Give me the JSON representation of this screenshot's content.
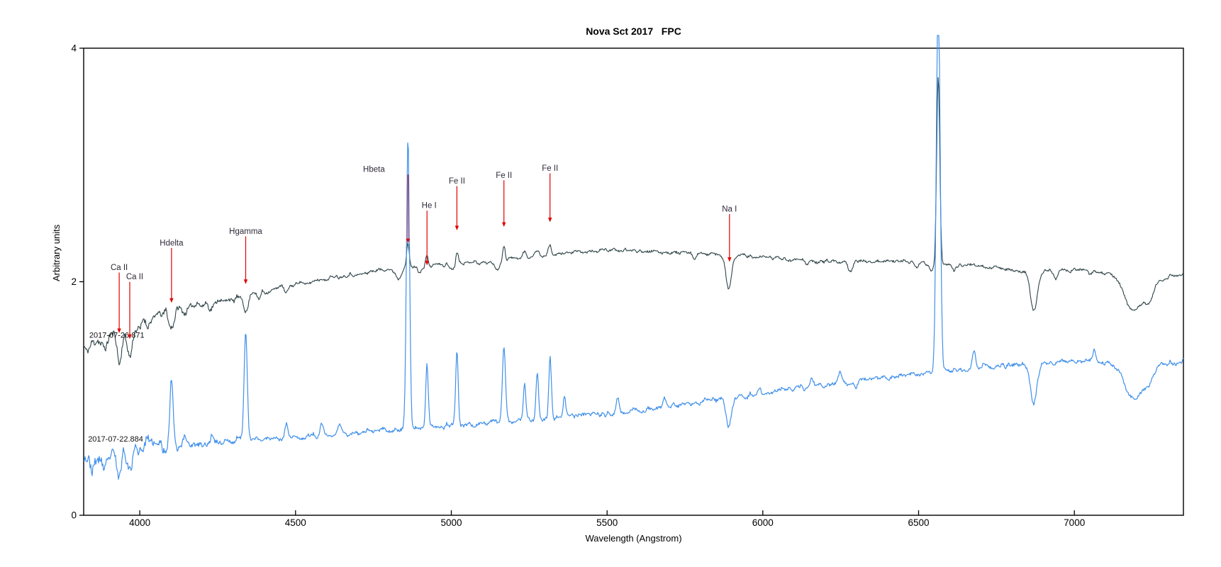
{
  "chart_data": {
    "type": "line",
    "title": "Nova Sct 2017   FPC",
    "xlabel": "Wavelength (Angstrom)",
    "ylabel": "Arbitrary units",
    "xlim": [
      3820,
      7350
    ],
    "ylim": [
      0,
      4
    ],
    "x_ticks": [
      4000,
      4500,
      5000,
      5500,
      6000,
      6500,
      7000
    ],
    "y_ticks": [
      0,
      2,
      4
    ],
    "grid": false,
    "legend_position": "none (dates written next to each curve)",
    "annotation_color": "#e10000",
    "annotation_text_color": "#2e2838",
    "axis_color": "#000000",
    "series": [
      {
        "name": "2017-07-26.871",
        "color": "#2f4447",
        "stroke_width": 1.1,
        "label": {
          "text": "2017-07-26.871",
          "lambda": 3838,
          "value": 1.52
        },
        "continuum": [
          [
            3820,
            1.44
          ],
          [
            3900,
            1.54
          ],
          [
            3970,
            1.6
          ],
          [
            4050,
            1.7
          ],
          [
            4150,
            1.79
          ],
          [
            4250,
            1.83
          ],
          [
            4350,
            1.88
          ],
          [
            4450,
            1.95
          ],
          [
            4550,
            2.0
          ],
          [
            4650,
            2.05
          ],
          [
            4750,
            2.09
          ],
          [
            4850,
            2.12
          ],
          [
            4950,
            2.14
          ],
          [
            5050,
            2.16
          ],
          [
            5150,
            2.18
          ],
          [
            5250,
            2.21
          ],
          [
            5350,
            2.24
          ],
          [
            5450,
            2.26
          ],
          [
            5550,
            2.27
          ],
          [
            5650,
            2.26
          ],
          [
            5750,
            2.25
          ],
          [
            5850,
            2.24
          ],
          [
            5950,
            2.22
          ],
          [
            6050,
            2.2
          ],
          [
            6150,
            2.18
          ],
          [
            6250,
            2.17
          ],
          [
            6350,
            2.18
          ],
          [
            6450,
            2.17
          ],
          [
            6550,
            2.15
          ],
          [
            6650,
            2.14
          ],
          [
            6750,
            2.12
          ],
          [
            6850,
            2.08
          ],
          [
            6950,
            2.1
          ],
          [
            7050,
            2.1
          ],
          [
            7150,
            2.05
          ],
          [
            7250,
            2.0
          ],
          [
            7350,
            2.08
          ]
        ],
        "features": [
          [
            3890,
            8,
            -0.1
          ],
          [
            3934,
            7,
            -0.26
          ],
          [
            3968,
            7,
            -0.24
          ],
          [
            4026,
            6,
            -0.07
          ],
          [
            4102,
            7,
            -0.14
          ],
          [
            4144,
            6,
            -0.05
          ],
          [
            4226,
            5,
            -0.05
          ],
          [
            4340,
            7,
            -0.15
          ],
          [
            4383,
            5,
            -0.06
          ],
          [
            4471,
            6,
            -0.06
          ],
          [
            4830,
            10,
            -0.09
          ],
          [
            4861,
            4,
            0.2
          ],
          [
            4901,
            6,
            -0.05
          ],
          [
            4922,
            4,
            0.09
          ],
          [
            5005,
            7,
            -0.05
          ],
          [
            5018,
            4,
            0.11
          ],
          [
            5150,
            8,
            -0.07
          ],
          [
            5169,
            4,
            0.13
          ],
          [
            5235,
            5,
            0.05
          ],
          [
            5276,
            5,
            0.06
          ],
          [
            5317,
            5,
            0.08
          ],
          [
            5780,
            6,
            -0.05
          ],
          [
            5890,
            9,
            -0.3
          ],
          [
            6142,
            6,
            -0.04
          ],
          [
            6280,
            8,
            -0.07
          ],
          [
            6495,
            6,
            -0.04
          ],
          [
            6540,
            8,
            -0.06
          ],
          [
            6563,
            5,
            1.62
          ],
          [
            6613,
            5,
            -0.04
          ],
          [
            6870,
            11,
            -0.33
          ],
          [
            6940,
            8,
            -0.08
          ],
          [
            7050,
            6,
            -0.04
          ],
          [
            7190,
            28,
            -0.28
          ],
          [
            7240,
            15,
            -0.12
          ]
        ],
        "noise": {
          "base": 0.02,
          "boost_below": 4450,
          "boost_amp": 0.05,
          "seed": 11
        }
      },
      {
        "name": "2017-07-22.884",
        "color": "#4090ea",
        "stroke_width": 1.2,
        "label": {
          "text": "2017-07-22.884",
          "lambda": 3834,
          "value": 0.63
        },
        "continuum": [
          [
            3820,
            0.55
          ],
          [
            3880,
            0.52
          ],
          [
            3950,
            0.56
          ],
          [
            4020,
            0.58
          ],
          [
            4100,
            0.6
          ],
          [
            4200,
            0.62
          ],
          [
            4300,
            0.64
          ],
          [
            4400,
            0.66
          ],
          [
            4500,
            0.67
          ],
          [
            4600,
            0.69
          ],
          [
            4700,
            0.71
          ],
          [
            4800,
            0.73
          ],
          [
            4900,
            0.75
          ],
          [
            5000,
            0.77
          ],
          [
            5100,
            0.79
          ],
          [
            5200,
            0.81
          ],
          [
            5300,
            0.83
          ],
          [
            5400,
            0.85
          ],
          [
            5500,
            0.87
          ],
          [
            5600,
            0.9
          ],
          [
            5700,
            0.93
          ],
          [
            5800,
            0.97
          ],
          [
            5900,
            1.01
          ],
          [
            6000,
            1.04
          ],
          [
            6100,
            1.08
          ],
          [
            6200,
            1.12
          ],
          [
            6300,
            1.15
          ],
          [
            6400,
            1.18
          ],
          [
            6500,
            1.21
          ],
          [
            6600,
            1.24
          ],
          [
            6700,
            1.27
          ],
          [
            6800,
            1.29
          ],
          [
            6900,
            1.3
          ],
          [
            7000,
            1.32
          ],
          [
            7100,
            1.31
          ],
          [
            7200,
            1.28
          ],
          [
            7300,
            1.3
          ],
          [
            7350,
            1.33
          ]
        ],
        "features": [
          [
            3850,
            8,
            -0.12
          ],
          [
            3890,
            7,
            -0.15
          ],
          [
            3934,
            7,
            -0.18
          ],
          [
            3968,
            7,
            -0.15
          ],
          [
            4026,
            5,
            0.1
          ],
          [
            4102,
            5,
            0.6
          ],
          [
            4144,
            5,
            0.08
          ],
          [
            4233,
            5,
            0.08
          ],
          [
            4340,
            5,
            0.92
          ],
          [
            4471,
            5,
            0.12
          ],
          [
            4584,
            5,
            0.1
          ],
          [
            4640,
            6,
            0.08
          ],
          [
            4861,
            5,
            2.48
          ],
          [
            4922,
            4,
            0.55
          ],
          [
            5018,
            4,
            0.62
          ],
          [
            5169,
            5,
            0.62
          ],
          [
            5235,
            4,
            0.32
          ],
          [
            5276,
            4,
            0.4
          ],
          [
            5317,
            4,
            0.52
          ],
          [
            5363,
            4,
            0.18
          ],
          [
            5535,
            5,
            0.12
          ],
          [
            5683,
            5,
            0.08
          ],
          [
            5890,
            8,
            -0.26
          ],
          [
            5991,
            4,
            0.06
          ],
          [
            6158,
            5,
            0.08
          ],
          [
            6247,
            5,
            0.08
          ],
          [
            6300,
            6,
            -0.06
          ],
          [
            6563,
            6,
            3.3
          ],
          [
            6678,
            5,
            0.14
          ],
          [
            6870,
            10,
            -0.34
          ],
          [
            7065,
            5,
            0.1
          ],
          [
            7190,
            26,
            -0.3
          ],
          [
            7240,
            14,
            -0.15
          ]
        ],
        "noise": {
          "base": 0.027,
          "boost_below": 4350,
          "boost_amp": 0.06,
          "seed": 23
        }
      }
    ],
    "annotations": [
      {
        "label": "Ca II",
        "lambda": 3934,
        "label_v": 2.1,
        "tip_v": 1.56,
        "dx": 0
      },
      {
        "label": "Ca II",
        "lambda": 3968,
        "label_v": 2.02,
        "tip_v": 1.51,
        "dx": 7
      },
      {
        "label": "Hdelta",
        "lambda": 4102,
        "label_v": 2.31,
        "tip_v": 1.82,
        "dx": 0
      },
      {
        "label": "Hgamma",
        "lambda": 4340,
        "label_v": 2.41,
        "tip_v": 1.98,
        "dx": 0
      },
      {
        "label": "Hbeta",
        "lambda": 4861,
        "label_v": 2.94,
        "tip_v": 2.33,
        "dx": -48
      },
      {
        "label": "He I",
        "lambda": 4922,
        "label_v": 2.63,
        "tip_v": 2.14,
        "dx": 3
      },
      {
        "label": "Fe II",
        "lambda": 5018,
        "label_v": 2.84,
        "tip_v": 2.44,
        "dx": 0
      },
      {
        "label": "Fe II",
        "lambda": 5169,
        "label_v": 2.89,
        "tip_v": 2.47,
        "dx": 0
      },
      {
        "label": "Fe II",
        "lambda": 5317,
        "label_v": 2.95,
        "tip_v": 2.51,
        "dx": 0
      },
      {
        "label": "Na I",
        "lambda": 5893,
        "label_v": 2.6,
        "tip_v": 2.17,
        "dx": 0
      }
    ]
  }
}
